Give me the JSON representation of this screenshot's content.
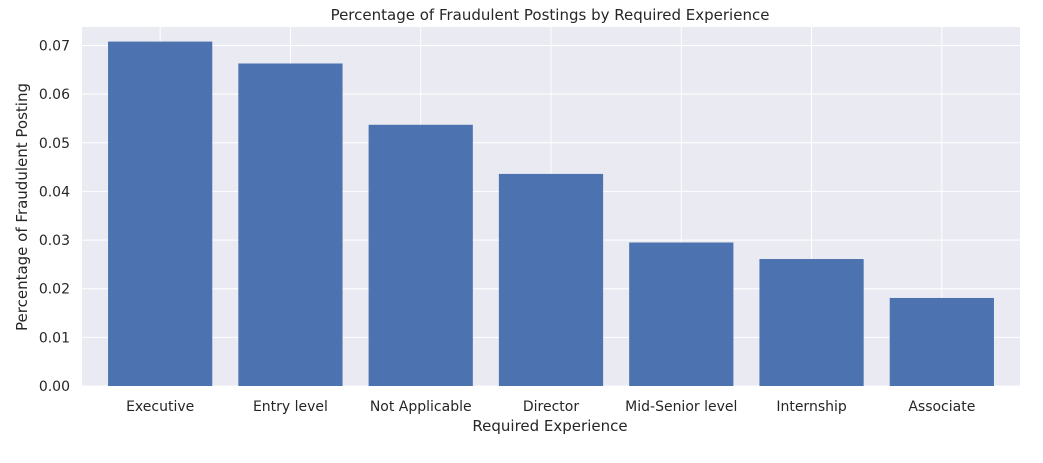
{
  "chart_data": {
    "type": "bar",
    "title": "Percentage of Fraudulent Postings by Required Experience",
    "xlabel": "Required Experience",
    "ylabel": "Percentage of Fraudulent Posting",
    "categories": [
      "Executive",
      "Entry level",
      "Not Applicable",
      "Director",
      "Mid-Senior level",
      "Internship",
      "Associate"
    ],
    "values": [
      0.0708,
      0.0663,
      0.0537,
      0.0436,
      0.0295,
      0.0261,
      0.0181
    ],
    "ylim": [
      0,
      0.0738
    ],
    "yticks": [
      0.0,
      0.01,
      0.02,
      0.03,
      0.04,
      0.05,
      0.06,
      0.07
    ],
    "ytick_labels": [
      "0.00",
      "0.01",
      "0.02",
      "0.03",
      "0.04",
      "0.05",
      "0.06",
      "0.07"
    ],
    "grid": true,
    "colors": {
      "bar": "#4c72b0",
      "plot_background": "#eaeaf2",
      "grid": "#ffffff"
    }
  }
}
